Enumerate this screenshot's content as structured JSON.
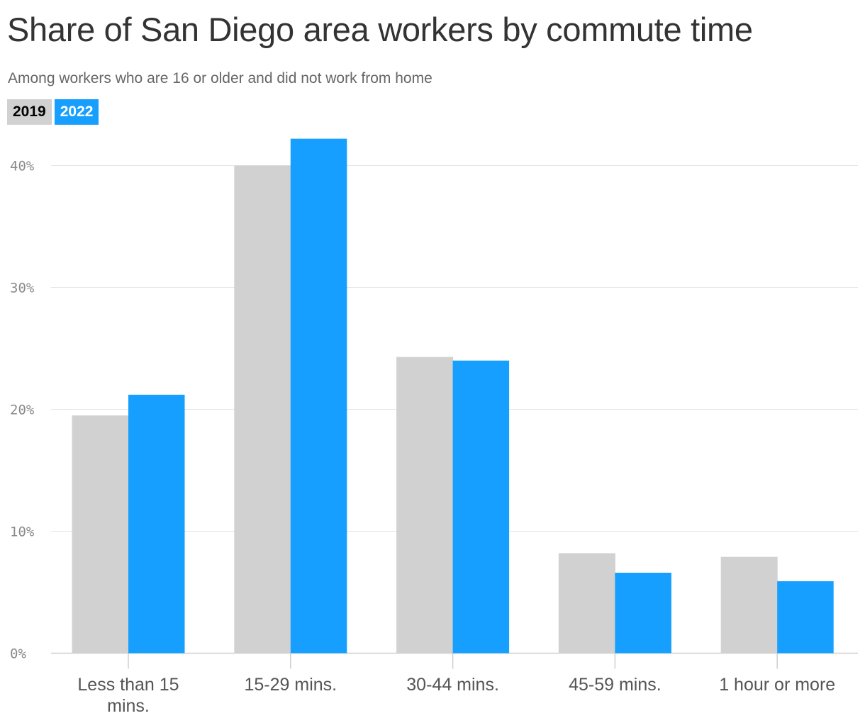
{
  "chart_data": {
    "type": "bar",
    "title": "Share of San Diego area workers by commute time",
    "subtitle": "Among workers who are 16 or older and did not work from home",
    "xlabel": "",
    "ylabel": "",
    "categories": [
      "Less than 15 mins.",
      "15-29 mins.",
      "30-44 mins.",
      "45-59 mins.",
      "1 hour or more"
    ],
    "series": [
      {
        "name": "2019",
        "color": "#d0d1d0",
        "values": [
          19.5,
          40.0,
          24.3,
          8.2,
          7.9
        ]
      },
      {
        "name": "2022",
        "color": "#169ffe",
        "values": [
          21.2,
          42.2,
          24.0,
          6.6,
          5.9
        ]
      }
    ],
    "ylim": [
      0,
      43
    ],
    "yticks": [
      0,
      10,
      20,
      30,
      40
    ],
    "ytick_labels": [
      "0%",
      "10%",
      "20%",
      "30%",
      "40%"
    ],
    "grid": true,
    "legend_position": "top-left"
  }
}
